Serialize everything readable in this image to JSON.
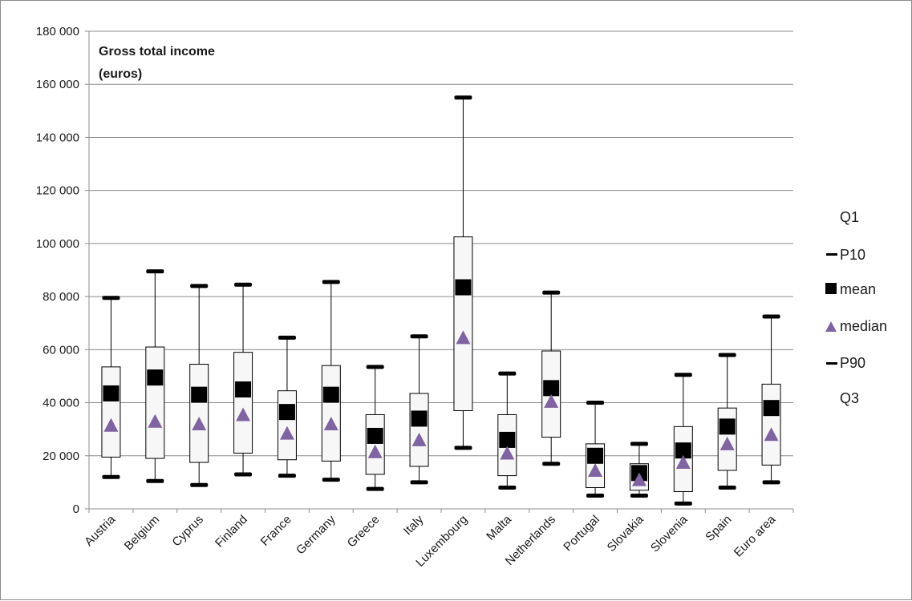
{
  "chart_data": {
    "type": "box",
    "title_lines": [
      "Gross total income",
      "(euros)"
    ],
    "ylim": [
      0,
      180000
    ],
    "yticks": [
      0,
      20000,
      40000,
      60000,
      80000,
      100000,
      120000,
      140000,
      160000,
      180000
    ],
    "ytick_labels": [
      "0",
      "20 000",
      "40 000",
      "60 000",
      "80 000",
      "100 000",
      "120 000",
      "140 000",
      "160 000",
      "180 000"
    ],
    "grid": true,
    "legend_position": "right",
    "legend": {
      "q1": "Q1",
      "p10": "P10",
      "mean": "mean",
      "median": "median",
      "p90": "P90",
      "q3": "Q3"
    },
    "colors": {
      "box_fill": "#f7f7f7",
      "mean": "#000000",
      "median": "#8064a2",
      "grid": "#8c8c8c"
    },
    "categories": [
      "Austria",
      "Belgium",
      "Cyprus",
      "Finland",
      "France",
      "Germany",
      "Greece",
      "Italy",
      "Luxembourg",
      "Malta",
      "Netherlands",
      "Portugal",
      "Slovakia",
      "Slovenia",
      "Spain",
      "Euro area"
    ],
    "series": [
      {
        "p10": 12000,
        "q1": 19500,
        "median": 31500,
        "mean": 43500,
        "q3": 53500,
        "p90": 79500
      },
      {
        "p10": 10500,
        "q1": 19000,
        "median": 33000,
        "mean": 49500,
        "q3": 61000,
        "p90": 89500
      },
      {
        "p10": 9000,
        "q1": 17500,
        "median": 32000,
        "mean": 43000,
        "q3": 54500,
        "p90": 84000
      },
      {
        "p10": 13000,
        "q1": 21000,
        "median": 35500,
        "mean": 45000,
        "q3": 59000,
        "p90": 84500
      },
      {
        "p10": 12500,
        "q1": 18500,
        "median": 28500,
        "mean": 36500,
        "q3": 44500,
        "p90": 64500
      },
      {
        "p10": 11000,
        "q1": 18000,
        "median": 32000,
        "mean": 43000,
        "q3": 54000,
        "p90": 85500
      },
      {
        "p10": 7500,
        "q1": 13000,
        "median": 21500,
        "mean": 27500,
        "q3": 35500,
        "p90": 53500
      },
      {
        "p10": 10000,
        "q1": 16000,
        "median": 26000,
        "mean": 34000,
        "q3": 43500,
        "p90": 65000
      },
      {
        "p10": 23000,
        "q1": 37000,
        "median": 64500,
        "mean": 83500,
        "q3": 102500,
        "p90": 155000
      },
      {
        "p10": 8000,
        "q1": 12500,
        "median": 21000,
        "mean": 26000,
        "q3": 35500,
        "p90": 51000
      },
      {
        "p10": 17000,
        "q1": 27000,
        "median": 40500,
        "mean": 45500,
        "q3": 59500,
        "p90": 81500
      },
      {
        "p10": 5000,
        "q1": 8000,
        "median": 14500,
        "mean": 20000,
        "q3": 24500,
        "p90": 40000
      },
      {
        "p10": 5000,
        "q1": 7000,
        "median": 11000,
        "mean": 13500,
        "q3": 17000,
        "p90": 24500
      },
      {
        "p10": 2000,
        "q1": 6500,
        "median": 17500,
        "mean": 22000,
        "q3": 31000,
        "p90": 50500
      },
      {
        "p10": 8000,
        "q1": 14500,
        "median": 24500,
        "mean": 31000,
        "q3": 38000,
        "p90": 58000
      },
      {
        "p10": 10000,
        "q1": 16500,
        "median": 28000,
        "mean": 38000,
        "q3": 47000,
        "p90": 72500
      }
    ]
  }
}
